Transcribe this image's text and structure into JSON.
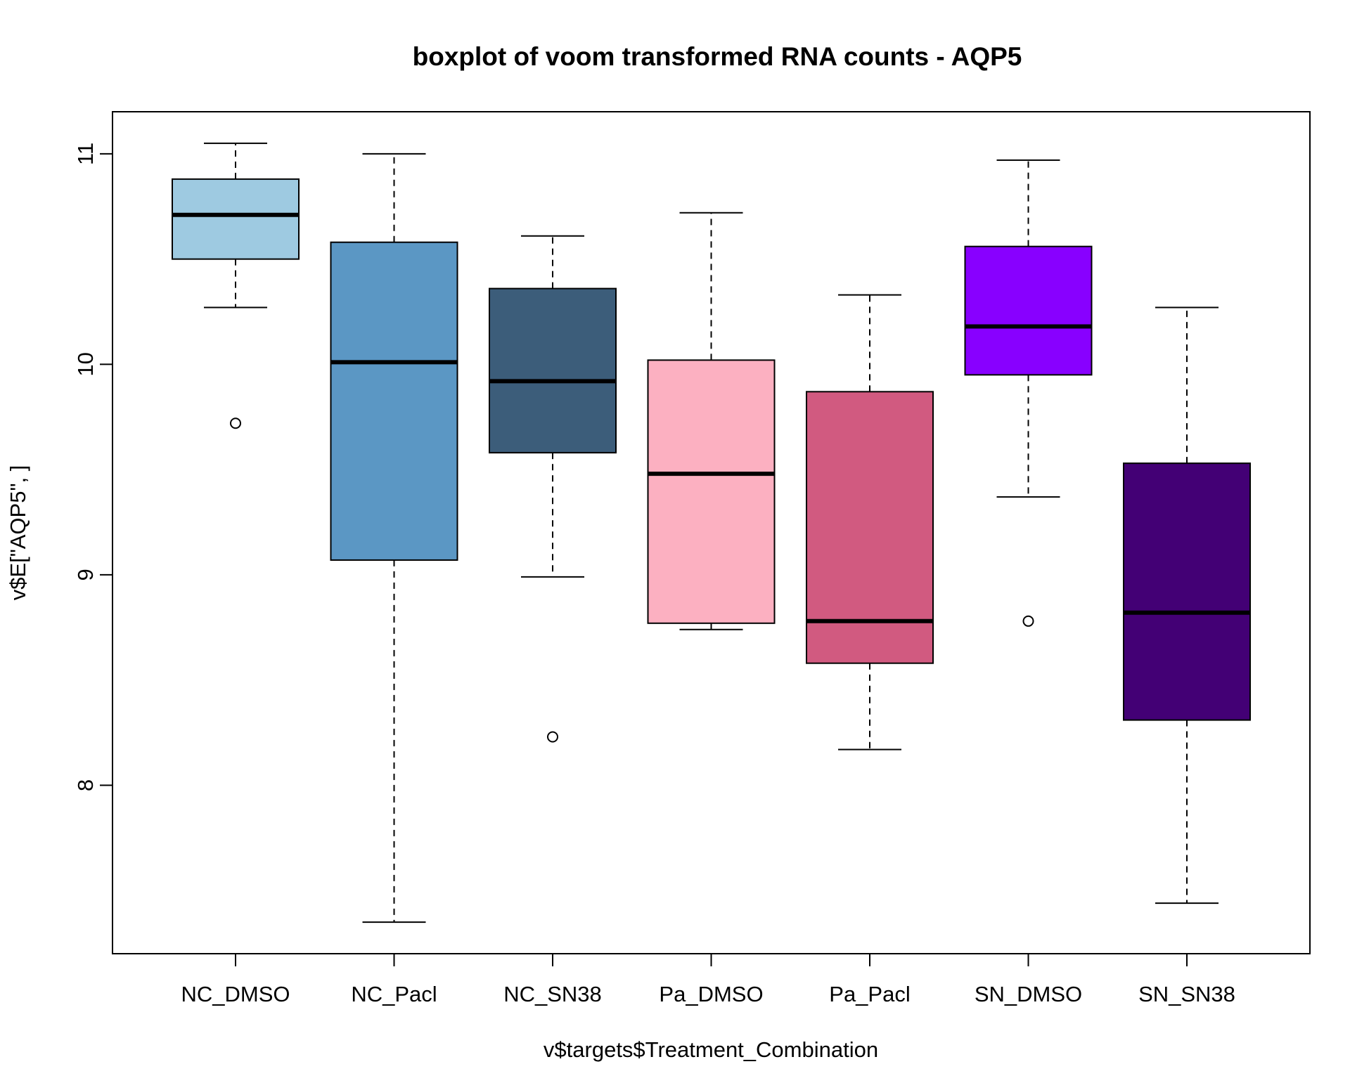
{
  "chart_data": {
    "type": "boxplot",
    "title": "boxplot of voom transformed RNA counts - AQP5",
    "xlabel": "v$targets$Treatment_Combination",
    "ylabel": "v$E[\"AQP5\", ]",
    "ylim": [
      7.2,
      11.2
    ],
    "yticks": [
      {
        "value": 8,
        "label": "8"
      },
      {
        "value": 9,
        "label": "9"
      },
      {
        "value": 10,
        "label": "10"
      },
      {
        "value": 11,
        "label": "11"
      }
    ],
    "grid": false,
    "legend": "none",
    "groups": [
      {
        "category": "NC_DMSO",
        "color": "#9ecae1",
        "min": 10.27,
        "q1": 10.5,
        "median": 10.71,
        "q3": 10.88,
        "max": 11.05,
        "outliers": [
          9.72
        ]
      },
      {
        "category": "NC_Pacl",
        "color": "#5b97c4",
        "min": 7.35,
        "q1": 9.07,
        "median": 10.01,
        "q3": 10.58,
        "max": 11.0,
        "outliers": []
      },
      {
        "category": "NC_SN38",
        "color": "#3c5d7a",
        "min": 8.99,
        "q1": 9.58,
        "median": 9.92,
        "q3": 10.36,
        "max": 10.61,
        "outliers": [
          8.23
        ]
      },
      {
        "category": "Pa_DMSO",
        "color": "#fcb0c1",
        "min": 8.74,
        "q1": 8.77,
        "median": 9.48,
        "q3": 10.02,
        "max": 10.72,
        "outliers": []
      },
      {
        "category": "Pa_Pacl",
        "color": "#d15a80",
        "min": 8.17,
        "q1": 8.58,
        "median": 8.78,
        "q3": 9.87,
        "max": 10.33,
        "outliers": []
      },
      {
        "category": "SN_DMSO",
        "color": "#8800ff",
        "min": 9.37,
        "q1": 9.95,
        "median": 10.18,
        "q3": 10.56,
        "max": 10.97,
        "outliers": [
          8.78
        ]
      },
      {
        "category": "SN_SN38",
        "color": "#430075",
        "min": 7.44,
        "q1": 8.31,
        "median": 8.82,
        "q3": 9.53,
        "max": 10.27,
        "outliers": []
      }
    ]
  }
}
